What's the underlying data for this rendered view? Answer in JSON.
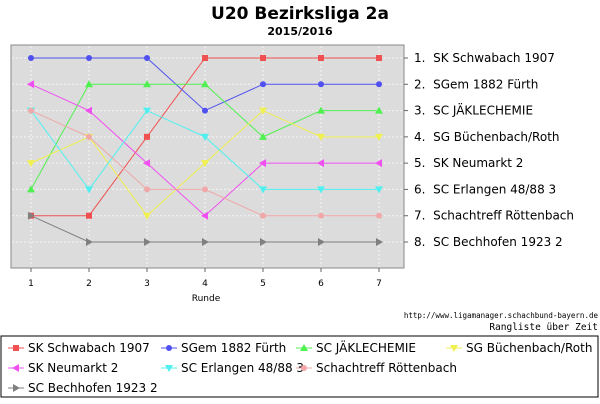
{
  "chart_data": {
    "type": "line",
    "title": "U20 Bezirksliga 2a",
    "subtitle": "2015/2016",
    "xlabel": "Runde",
    "ylabel": "",
    "x": [
      1,
      2,
      3,
      4,
      5,
      6,
      7
    ],
    "ylim": [
      1,
      8
    ],
    "y_inverted": true,
    "grid": true,
    "legend_position": "bottom",
    "source_url": "http://www.ligamanager.schachbund-bayern.de",
    "caption": "Rangliste über Zeit",
    "rank_labels": [
      "1.  SK Schwabach 1907",
      "2.  SGem 1882 Fürth",
      "3.  SC JÄKLECHEMIE",
      "4.  SG Büchenbach/Roth",
      "5.  SK Neumarkt 2",
      "6.  SC Erlangen 48/88 3",
      "7.  Schachtreff Röttenbach",
      "8.  SC Bechhofen 1923 2"
    ],
    "series": [
      {
        "name": "SK Schwabach 1907",
        "color": "#f05050",
        "marker": "square",
        "values": [
          7,
          7,
          4,
          1,
          1,
          1,
          1
        ]
      },
      {
        "name": "SGem 1882 Fürth",
        "color": "#5050f0",
        "marker": "circle",
        "values": [
          1,
          1,
          1,
          3,
          2,
          2,
          2
        ]
      },
      {
        "name": "SC JÄKLECHEMIE",
        "color": "#50f050",
        "marker": "triangle-up",
        "values": [
          6,
          2,
          2,
          2,
          4,
          3,
          3
        ]
      },
      {
        "name": "SG Büchenbach/Roth",
        "color": "#f0f050",
        "marker": "triangle-down",
        "values": [
          5,
          4,
          7,
          5,
          3,
          4,
          4
        ]
      },
      {
        "name": "SK Neumarkt 2",
        "color": "#f050f0",
        "marker": "triangle-left",
        "values": [
          2,
          3,
          5,
          7,
          5,
          5,
          5
        ]
      },
      {
        "name": "SC Erlangen 48/88 3",
        "color": "#50f0f0",
        "marker": "triangle-down",
        "values": [
          3,
          6,
          3,
          4,
          6,
          6,
          6
        ]
      },
      {
        "name": "Schachtreff Röttenbach",
        "color": "#f0a8a8",
        "marker": "circle",
        "values": [
          3,
          4,
          6,
          6,
          7,
          7,
          7
        ]
      },
      {
        "name": "SC Bechhofen 1923 2",
        "color": "#808080",
        "marker": "triangle-right",
        "values": [
          7,
          8,
          8,
          8,
          8,
          8,
          8
        ]
      }
    ]
  }
}
